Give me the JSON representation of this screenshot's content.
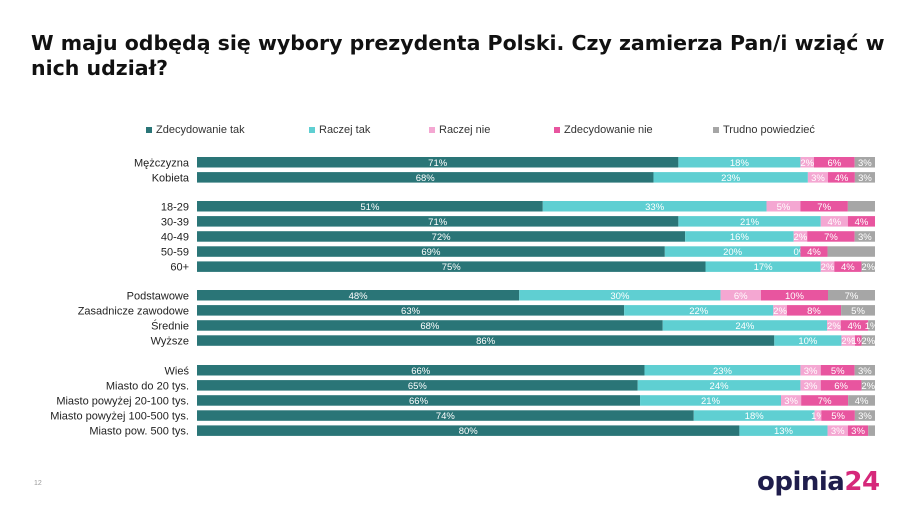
{
  "title": "W maju odbędą się wybory prezydenta Polski. Czy zamierza Pan/i wziąć w nich udział?",
  "page_number": "12",
  "logo": {
    "word": "opinia",
    "number": "24"
  },
  "colors": {
    "zdecydowanie_tak": "#2a7577",
    "raczej_tak": "#5fcfd2",
    "raczej_nie": "#f4a7d2",
    "zdecydowanie_nie": "#e8559f",
    "trudno_powiedziec": "#a6a6a6"
  },
  "chart_data": {
    "type": "bar",
    "orientation": "horizontal",
    "stacked": true,
    "title": "W maju odbędą się wybory prezydenta Polski. Czy zamierza Pan/i wziąć w nich udział?",
    "xlim": [
      0,
      100
    ],
    "legend_position": "top",
    "series_names": [
      "Zdecydowanie tak",
      "Raczej tak",
      "Raczej nie",
      "Zdecydowanie nie",
      "Trudno powiedzieć"
    ],
    "groups": [
      {
        "categories": [
          "Mężczyzna",
          "Kobieta"
        ],
        "values": [
          [
            71,
            18,
            2,
            6,
            3
          ],
          [
            68,
            23,
            3,
            4,
            3
          ]
        ],
        "labels": [
          [
            "71%",
            "18%",
            "2%",
            "6%",
            "3%"
          ],
          [
            "68%",
            "23%",
            "3%",
            "4%",
            "3%"
          ]
        ]
      },
      {
        "categories": [
          "18-29",
          "30-39",
          "40-49",
          "50-59",
          "60+"
        ],
        "values": [
          [
            51,
            33,
            5,
            7,
            4
          ],
          [
            71,
            21,
            4,
            4,
            0
          ],
          [
            72,
            16,
            2,
            7,
            3
          ],
          [
            69,
            20,
            0,
            4,
            7
          ],
          [
            75,
            17,
            2,
            4,
            2
          ]
        ],
        "labels": [
          [
            "51%",
            "33%",
            "5%",
            "7%",
            ""
          ],
          [
            "71%",
            "21%",
            "4%",
            "4%",
            ""
          ],
          [
            "72%",
            "16%",
            "2%",
            "7%",
            "3%"
          ],
          [
            "69%",
            "20%",
            "0%",
            "4%",
            ""
          ],
          [
            "75%",
            "17%",
            "2%",
            "4%",
            "2%"
          ]
        ]
      },
      {
        "categories": [
          "Podstawowe",
          "Zasadnicze zawodowe",
          "Średnie",
          "Wyższe"
        ],
        "values": [
          [
            48,
            30,
            6,
            10,
            7
          ],
          [
            63,
            22,
            2,
            8,
            5
          ],
          [
            68,
            24,
            2,
            4,
            1
          ],
          [
            86,
            10,
            2,
            1,
            2
          ]
        ],
        "labels": [
          [
            "48%",
            "30%",
            "6%",
            "10%",
            "7%"
          ],
          [
            "63%",
            "22%",
            "2%",
            "8%",
            "5%"
          ],
          [
            "68%",
            "24%",
            "2%",
            "4%",
            "1%"
          ],
          [
            "86%",
            "10%",
            "2%",
            "1%",
            "2%"
          ]
        ]
      },
      {
        "categories": [
          "Wieś",
          "Miasto do 20 tys.",
          "Miasto powyżej 20-100 tys.",
          "Miasto powyżej 100-500 tys.",
          "Miasto pow. 500 tys."
        ],
        "values": [
          [
            66,
            23,
            3,
            5,
            3
          ],
          [
            65,
            24,
            3,
            6,
            2
          ],
          [
            66,
            21,
            3,
            7,
            4
          ],
          [
            74,
            18,
            1,
            5,
            3
          ],
          [
            80,
            13,
            3,
            3,
            1
          ]
        ],
        "labels": [
          [
            "66%",
            "23%",
            "3%",
            "5%",
            "3%"
          ],
          [
            "65%",
            "24%",
            "3%",
            "6%",
            "2%"
          ],
          [
            "66%",
            "21%",
            "3%",
            "7%",
            "4%"
          ],
          [
            "74%",
            "18%",
            "1%",
            "5%",
            "3%"
          ],
          [
            "80%",
            "13%",
            "3%",
            "3%",
            ""
          ]
        ]
      }
    ]
  }
}
